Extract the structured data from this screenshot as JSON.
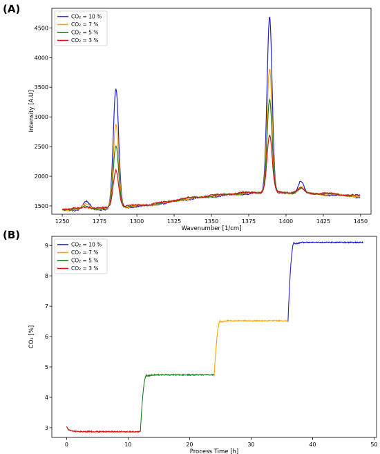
{
  "chart_data": [
    {
      "panel_label": "(A)",
      "type": "line",
      "xlabel": "Wavenumber [1/cm]",
      "ylabel": "Intensity [A.U]",
      "xlim": [
        1243,
        1457
      ],
      "ylim": [
        1360,
        4830
      ],
      "xticks": [
        1250,
        1275,
        1300,
        1325,
        1350,
        1375,
        1400,
        1425,
        1450
      ],
      "yticks": [
        1500,
        2000,
        2500,
        3000,
        3500,
        4000,
        4500
      ],
      "grid": false,
      "legend_position": "top-left",
      "x_range": [
        1250,
        1450
      ],
      "baseline": [
        [
          1250,
          1440
        ],
        [
          1260,
          1442
        ],
        [
          1270,
          1452
        ],
        [
          1280,
          1456
        ],
        [
          1290,
          1480
        ],
        [
          1300,
          1500
        ],
        [
          1310,
          1520
        ],
        [
          1320,
          1560
        ],
        [
          1330,
          1610
        ],
        [
          1340,
          1640
        ],
        [
          1350,
          1665
        ],
        [
          1360,
          1690
        ],
        [
          1370,
          1710
        ],
        [
          1380,
          1720
        ],
        [
          1390,
          1730
        ],
        [
          1400,
          1720
        ],
        [
          1410,
          1715
        ],
        [
          1420,
          1705
        ],
        [
          1430,
          1695
        ],
        [
          1440,
          1680
        ],
        [
          1450,
          1660
        ]
      ],
      "series": [
        {
          "name": "CO₂ = 10 %",
          "color": "#1f1fd0",
          "peaks": [
            [
              1266,
              130,
              2.2
            ],
            [
              1286,
              2010,
              1.8
            ],
            [
              1389,
              2980,
              1.7
            ],
            [
              1410,
              220,
              2.0
            ]
          ]
        },
        {
          "name": "CO₂ = 7 %",
          "color": "#ffa500",
          "peaks": [
            [
              1266,
              80,
              2.2
            ],
            [
              1286,
              1400,
              1.8
            ],
            [
              1389,
              2100,
              1.7
            ],
            [
              1410,
              110,
              2.0
            ]
          ]
        },
        {
          "name": "CO₂ = 5 %",
          "color": "#1a7f1a",
          "peaks": [
            [
              1266,
              40,
              2.2
            ],
            [
              1286,
              1040,
              1.8
            ],
            [
              1389,
              1560,
              1.7
            ],
            [
              1410,
              70,
              2.0
            ]
          ]
        },
        {
          "name": "CO₂ = 3 %",
          "color": "#e01010",
          "peaks": [
            [
              1266,
              30,
              2.2
            ],
            [
              1286,
              630,
              1.8
            ],
            [
              1389,
              950,
              1.7
            ],
            [
              1410,
              70,
              2.0
            ]
          ]
        }
      ]
    },
    {
      "panel_label": "(B)",
      "type": "line",
      "xlabel": "Process Time [h]",
      "ylabel": "CO₂ [%]",
      "xlim": [
        -2.4,
        50.4
      ],
      "ylim": [
        2.68,
        9.3
      ],
      "xticks": [
        0,
        10,
        20,
        30,
        40,
        50
      ],
      "yticks": [
        3,
        4,
        5,
        6,
        7,
        8,
        9
      ],
      "grid": false,
      "legend_position": "top-left",
      "series": [
        {
          "name": "CO₂ = 10 %",
          "color": "#1f1fd0",
          "x_range": [
            36,
            48.2
          ],
          "start": 6.5,
          "plateau": 9.1,
          "rise_hours": 1.0
        },
        {
          "name": "CO₂ = 7 %",
          "color": "#ffa500",
          "x_range": [
            24,
            36
          ],
          "start": 4.7,
          "plateau": 6.52,
          "rise_hours": 1.0
        },
        {
          "name": "CO₂ = 5 %",
          "color": "#1a7f1a",
          "x_range": [
            12,
            24
          ],
          "start": 2.88,
          "plateau": 4.74,
          "rise_hours": 1.0
        },
        {
          "name": "CO₂ = 3 %",
          "color": "#e01010",
          "x_range": [
            0,
            12
          ],
          "start": 2.88,
          "plateau": 2.87,
          "rise_hours": 0
        }
      ]
    }
  ]
}
